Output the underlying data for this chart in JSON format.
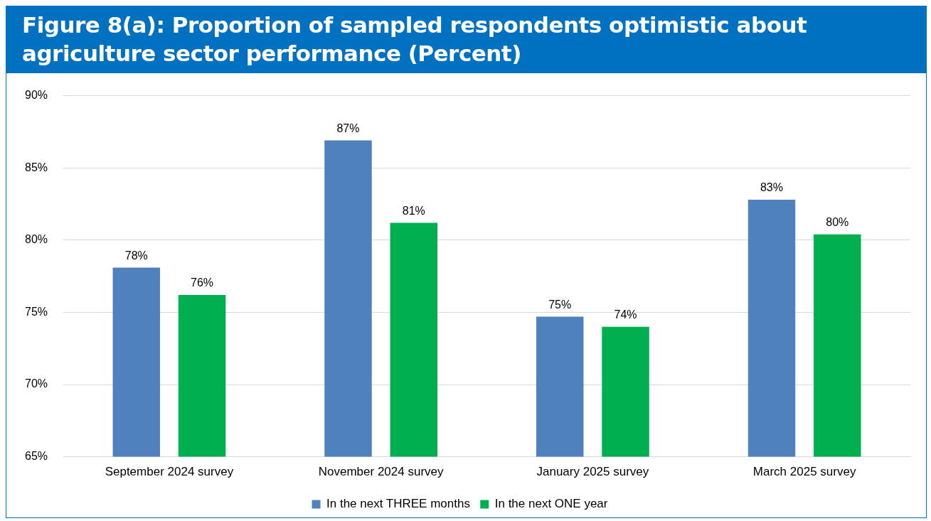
{
  "chart_data": {
    "type": "bar",
    "title": "Figure 8(a): Proportion of sampled respondents optimistic about agriculture sector performance (Percent)",
    "categories": [
      "September 2024 survey",
      "November 2024 survey",
      "January 2025 survey",
      "March 2025 survey"
    ],
    "series": [
      {
        "name": "In the next THREE months",
        "color": "#4f81bd",
        "values": [
          78.1,
          86.9,
          74.7,
          82.8
        ],
        "value_labels": [
          "78%",
          "87%",
          "75%",
          "83%"
        ]
      },
      {
        "name": "In the next ONE year",
        "color": "#00b050",
        "values": [
          76.2,
          81.2,
          74.0,
          80.4
        ],
        "value_labels": [
          "76%",
          "81%",
          "74%",
          "80%"
        ]
      }
    ],
    "ylim": [
      65,
      90
    ],
    "yticks": [
      {
        "value": 65,
        "label": "65%"
      },
      {
        "value": 70,
        "label": "70%"
      },
      {
        "value": 75,
        "label": "75%"
      },
      {
        "value": 80,
        "label": "80%"
      },
      {
        "value": 85,
        "label": "85%"
      },
      {
        "value": 90,
        "label": "90%"
      }
    ],
    "grid": "y",
    "legend": "bottom"
  }
}
